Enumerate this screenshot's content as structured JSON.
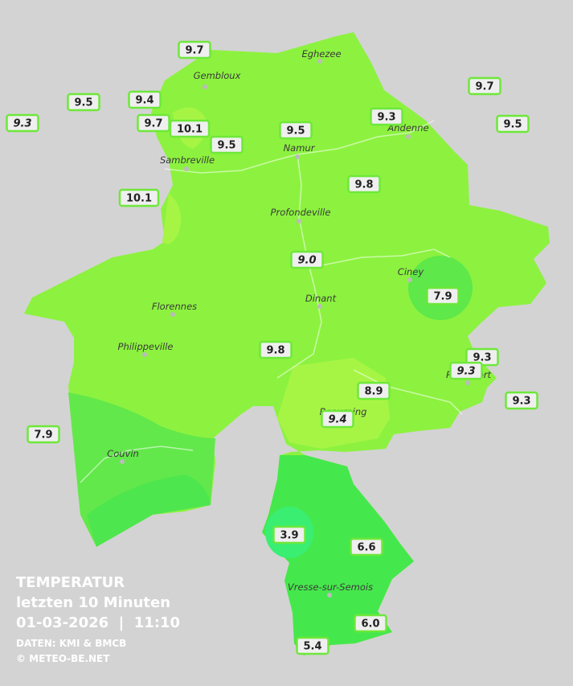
{
  "places": [
    "Eghezee",
    "Gembloux",
    "Andenne",
    "Namur",
    "Sambreville",
    "Profondeville",
    "Ciney",
    "Florennes",
    "Dinant",
    "Philippeville",
    "Rochefort",
    "Beauraing",
    "Couvin",
    "Vresse-sur-Semois"
  ],
  "stations": [
    "9.7",
    "9.5",
    "9.4",
    "9.3",
    "9.7",
    "10.1",
    "9.5",
    "9.5",
    "9.3",
    "9.7",
    "9.5",
    "10.1",
    "9.8",
    "9.0",
    "7.9",
    "9.8",
    "9.3",
    "9.3",
    "8.9",
    "9.4",
    "9.3",
    "7.9",
    "3.9",
    "6.6",
    "6.0",
    "5.4"
  ],
  "legend": {
    "title": "TEMPERATUR",
    "period": "letzten 10 Minuten",
    "datetime": "01-03-2026  |  11:10",
    "source": "DATEN: KMI & BMCB",
    "copyright": "© METEO-BE.NET"
  }
}
